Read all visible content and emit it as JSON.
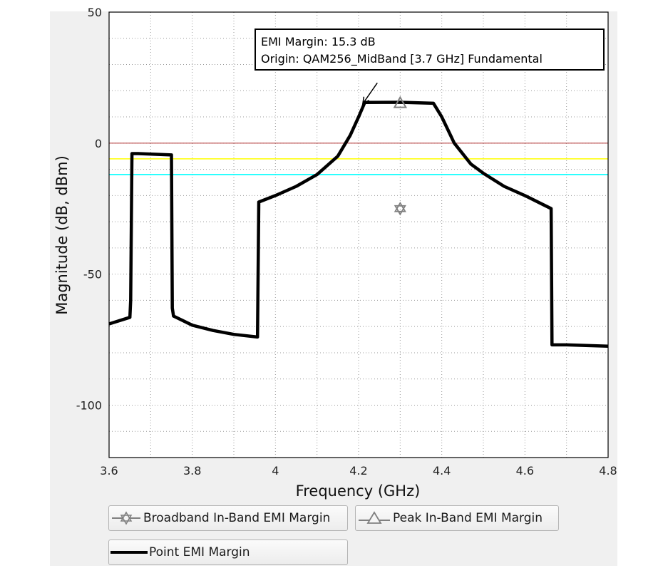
{
  "chart_data": {
    "type": "line",
    "xlabel": "Frequency (GHz)",
    "ylabel": "Magnitude (dB, dBm)",
    "xlim": [
      3.6,
      4.8
    ],
    "ylim": [
      -120,
      50
    ],
    "x_ticks": [
      3.6,
      3.8,
      4,
      4.2,
      4.4,
      4.6,
      4.8
    ],
    "x_tick_labels": [
      "3.6",
      "3.8",
      "4",
      "4.2",
      "4.4",
      "4.6",
      "4.8"
    ],
    "y_ticks": [
      50,
      0,
      -50,
      -100
    ],
    "y_tick_labels": [
      "50",
      "0",
      "-50",
      "-100"
    ],
    "grid": true,
    "reference_lines": [
      {
        "y": 0,
        "color": "#b03030"
      },
      {
        "y": -6,
        "color": "#ffff00"
      },
      {
        "y": -12,
        "color": "#00ffff"
      }
    ],
    "series": [
      {
        "name": "Point EMI Margin",
        "color": "#000000",
        "points": [
          [
            3.6,
            -69
          ],
          [
            3.65,
            -66.5
          ],
          [
            3.652,
            -60
          ],
          [
            3.655,
            -4
          ],
          [
            3.67,
            -4
          ],
          [
            3.75,
            -4.5
          ],
          [
            3.752,
            -63
          ],
          [
            3.755,
            -66
          ],
          [
            3.8,
            -69.5
          ],
          [
            3.85,
            -71.5
          ],
          [
            3.9,
            -73
          ],
          [
            3.957,
            -74
          ],
          [
            3.96,
            -22.5
          ],
          [
            4.0,
            -20
          ],
          [
            4.05,
            -16.5
          ],
          [
            4.1,
            -12
          ],
          [
            4.15,
            -5
          ],
          [
            4.18,
            3
          ],
          [
            4.2,
            10
          ],
          [
            4.215,
            15.5
          ],
          [
            4.3,
            15.6
          ],
          [
            4.38,
            15.2
          ],
          [
            4.4,
            10
          ],
          [
            4.43,
            0
          ],
          [
            4.47,
            -8
          ],
          [
            4.5,
            -11.5
          ],
          [
            4.55,
            -16.5
          ],
          [
            4.6,
            -20
          ],
          [
            4.663,
            -25
          ],
          [
            4.665,
            -77
          ],
          [
            4.7,
            -77
          ],
          [
            4.8,
            -77.5
          ]
        ]
      },
      {
        "name": "Peak In-Band EMI Margin",
        "color": "#808080",
        "marker": "triangle",
        "points": [
          [
            4.3,
            15.3
          ]
        ]
      },
      {
        "name": "Broadband In-Band EMI Margin",
        "color": "#808080",
        "marker": "star",
        "points": [
          [
            4.3,
            -25
          ]
        ]
      }
    ],
    "annotation": {
      "line1": "EMI Margin: 15.3 dB",
      "line2": "Origin: QAM256_MidBand [3.7 GHz] Fundamental",
      "arrow_from": [
        4.245,
        23
      ],
      "arrow_to": [
        4.21,
        15
      ]
    }
  },
  "legend": {
    "broadband_label": "Broadband In-Band EMI Margin",
    "peak_label": "Peak In-Band EMI Margin",
    "point_label": "Point EMI Margin"
  },
  "colors": {
    "panel_bg": "#f0f0f0",
    "plot_bg": "#ffffff",
    "grid": "#999999",
    "marker": "#808080",
    "line": "#000000"
  }
}
